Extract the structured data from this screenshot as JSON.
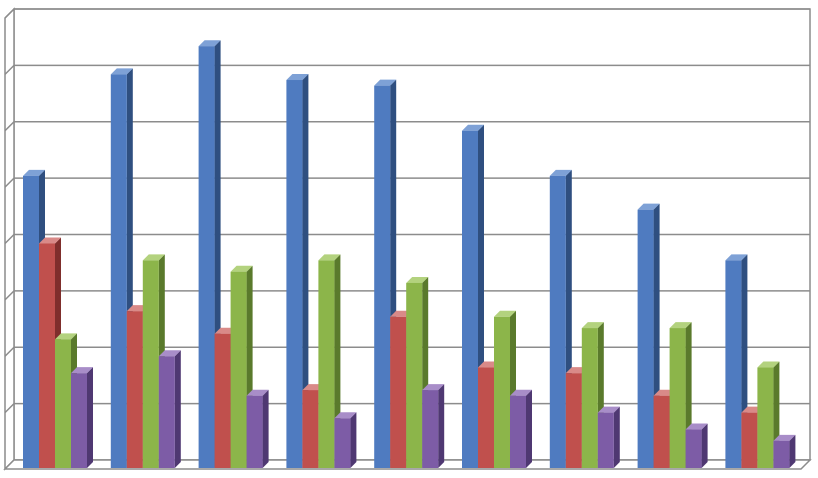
{
  "chart_data": {
    "type": "bar",
    "three_d": true,
    "categories": [
      "",
      "",
      "",
      "",
      "",
      "",
      "",
      "",
      ""
    ],
    "series": [
      {
        "values": [
          5.2,
          7.0,
          7.5,
          6.9,
          6.8,
          6.0,
          5.2,
          4.6,
          3.7
        ]
      },
      {
        "values": [
          4.0,
          2.8,
          2.4,
          1.4,
          2.7,
          1.8,
          1.7,
          1.3,
          1.0
        ]
      },
      {
        "values": [
          2.3,
          3.7,
          3.5,
          3.7,
          3.3,
          2.7,
          2.5,
          2.5,
          1.8
        ]
      },
      {
        "values": [
          1.7,
          2.0,
          1.3,
          0.9,
          1.4,
          1.3,
          1.0,
          0.7,
          0.5
        ]
      }
    ],
    "ylim": [
      0,
      8
    ],
    "gridlines": true,
    "legend": "none",
    "colors": {
      "series_front": [
        "#4f7bc0",
        "#c0504d",
        "#8cb54a",
        "#7d5ca6"
      ],
      "series_side": [
        "#2f4f80",
        "#7f2e2c",
        "#5a7a2c",
        "#4f3872"
      ],
      "series_top": [
        "#7ea1d6",
        "#d98a88",
        "#b3d27e",
        "#a88dc8"
      ],
      "grid": "#8c8c8c",
      "wall": "#ffffff"
    }
  }
}
